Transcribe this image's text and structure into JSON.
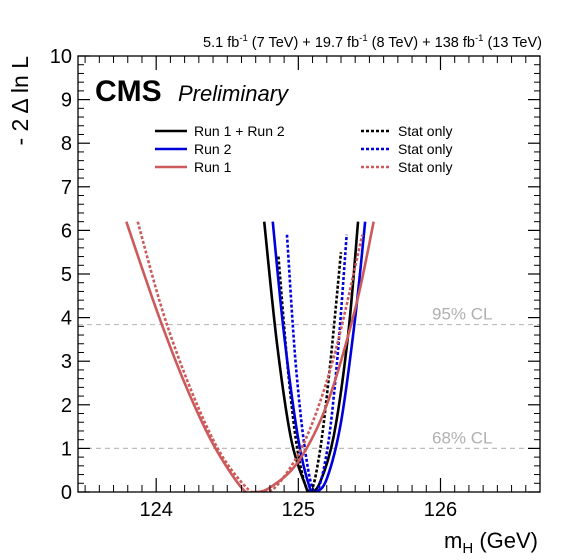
{
  "header": {
    "lumi_parts": [
      {
        "value": "5.1 fb",
        "sup": "-1",
        "energy": " (7 TeV) + "
      },
      {
        "value": "19.7 fb",
        "sup": "-1",
        "energy": " (8 TeV) + "
      },
      {
        "value": "138 fb",
        "sup": "-1",
        "energy": " (13 TeV)"
      }
    ]
  },
  "labels": {
    "cms": "CMS",
    "preliminary": "Preliminary",
    "cl95": "95% CL",
    "cl68": "68% CL"
  },
  "legend": [
    {
      "label": "Run 1 + Run 2",
      "stat_label": "Stat only",
      "color": "#000000"
    },
    {
      "label": "Run 2",
      "stat_label": "Stat only",
      "color": "#0000dd"
    },
    {
      "label": "Run 1",
      "stat_label": "Stat only",
      "color": "#cc5a5a"
    }
  ],
  "chart_data": {
    "type": "line",
    "title": "",
    "xlabel": "m_H (GeV)",
    "ylabel": "- 2 Δ ln L",
    "xlim": [
      123.45,
      126.7
    ],
    "ylim": [
      0,
      10
    ],
    "x_ticks": [
      124,
      125,
      126
    ],
    "y_ticks": [
      0,
      1,
      2,
      3,
      4,
      5,
      6,
      7,
      8,
      9,
      10
    ],
    "reference_lines": [
      {
        "y": 1,
        "label": "68% CL"
      },
      {
        "y": 3.84,
        "label": "95% CL"
      }
    ],
    "series": [
      {
        "name": "Run 1 + Run 2",
        "style": "solid",
        "color": "#000000",
        "x": [
          124.76,
          124.85,
          124.95,
          125.05,
          125.08,
          125.15,
          125.25,
          125.35,
          125.42
        ],
        "y": [
          6.2,
          3.4,
          1.2,
          0.15,
          0.0,
          0.2,
          1.3,
          3.6,
          6.2
        ]
      },
      {
        "name": "Run 1 + Run 2",
        "stat_only": true,
        "style": "dotted",
        "color": "#000000",
        "x": [
          124.86,
          124.93,
          125.0,
          125.08,
          125.15,
          125.22,
          125.3
        ],
        "y": [
          5.4,
          2.7,
          0.85,
          0.0,
          0.9,
          2.8,
          5.5
        ]
      },
      {
        "name": "Run 2",
        "style": "solid",
        "color": "#0000dd",
        "x": [
          124.82,
          124.9,
          125.0,
          125.08,
          125.12,
          125.2,
          125.3,
          125.4,
          125.47
        ],
        "y": [
          6.2,
          3.6,
          1.2,
          0.1,
          0.0,
          0.3,
          1.6,
          4.0,
          6.2
        ]
      },
      {
        "name": "Run 2",
        "stat_only": true,
        "style": "dotted",
        "color": "#0000dd",
        "x": [
          124.92,
          124.98,
          125.05,
          125.12,
          125.2,
          125.27,
          125.34
        ],
        "y": [
          5.9,
          3.0,
          0.9,
          0.0,
          0.9,
          2.9,
          5.9
        ]
      },
      {
        "name": "Run 1",
        "style": "solid",
        "color": "#cc5a5a",
        "x": [
          123.79,
          124.0,
          124.2,
          124.4,
          124.6,
          124.68,
          124.8,
          125.0,
          125.2,
          125.4,
          125.53
        ],
        "y": [
          6.2,
          4.2,
          2.5,
          1.1,
          0.1,
          0.0,
          0.1,
          0.7,
          2.0,
          4.2,
          6.2
        ]
      },
      {
        "name": "Run 1",
        "stat_only": true,
        "style": "dotted",
        "color": "#cc5a5a",
        "x": [
          123.87,
          124.05,
          124.25,
          124.45,
          124.65,
          124.73,
          124.85,
          125.05,
          125.25,
          125.45
        ],
        "y": [
          6.2,
          4.1,
          2.3,
          0.9,
          0.05,
          0.0,
          0.15,
          1.2,
          3.1,
          5.9
        ]
      }
    ]
  }
}
